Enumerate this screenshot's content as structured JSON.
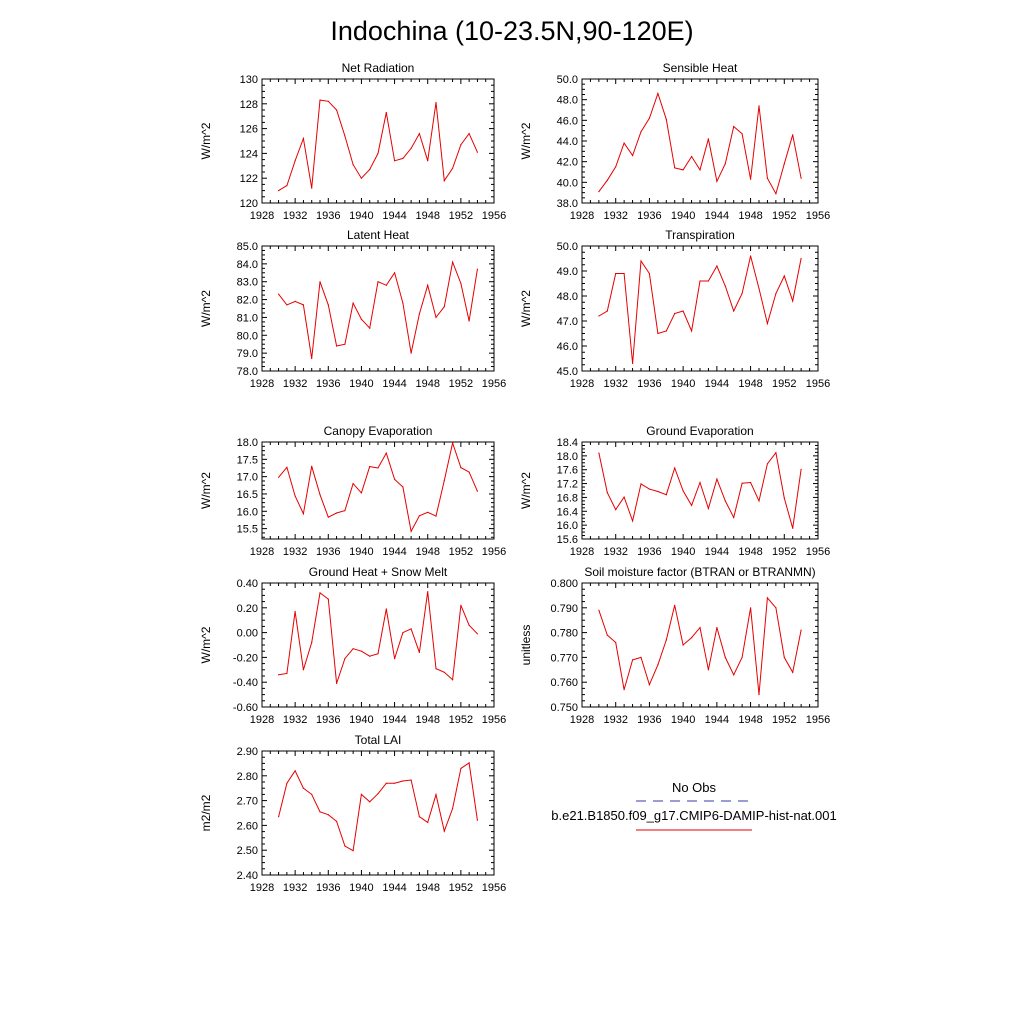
{
  "figure": {
    "title": "Indochina (10-23.5N,90-120E)"
  },
  "legend": {
    "obs_label": "No Obs",
    "model_label": "b.e21.B1850.f09_g17.CMIP6-DAMIP-hist-nat.001",
    "obs_color": "#3a3aa8",
    "model_color": "#e60000"
  },
  "colors": {
    "series": "#e60000",
    "axes": "#000000"
  },
  "chart_data": [
    {
      "type": "line",
      "title": "Net Radiation",
      "ylabel": "W/m^2",
      "xlim": [
        1928,
        1956
      ],
      "ylim": [
        120,
        130
      ],
      "xticks": [
        "1928",
        "1932",
        "1936",
        "1940",
        "1944",
        "1948",
        "1952",
        "1956"
      ],
      "yticks": [
        "120",
        "122",
        "124",
        "126",
        "128",
        "130"
      ],
      "x": [
        1930,
        1931,
        1932,
        1933,
        1934,
        1935,
        1936,
        1937,
        1938,
        1939,
        1940,
        1941,
        1942,
        1943,
        1944,
        1945,
        1946,
        1947,
        1948,
        1949,
        1950,
        1951,
        1952,
        1953,
        1954
      ],
      "series": [
        {
          "values": [
            121.0,
            121.4,
            123.4,
            125.2,
            121.2,
            128.3,
            128.2,
            127.5,
            125.4,
            123.1,
            122.0,
            122.7,
            124.0,
            127.3,
            123.4,
            123.6,
            124.4,
            125.6,
            123.4,
            128.1,
            121.8,
            122.8,
            124.7,
            125.6,
            124.1
          ]
        }
      ]
    },
    {
      "type": "line",
      "title": "Sensible Heat",
      "ylabel": "W/m^2",
      "xlim": [
        1928,
        1956
      ],
      "ylim": [
        38.0,
        50.0
      ],
      "xticks": [
        "1928",
        "1932",
        "1936",
        "1940",
        "1944",
        "1948",
        "1952",
        "1956"
      ],
      "yticks": [
        "38.0",
        "40.0",
        "42.0",
        "44.0",
        "46.0",
        "48.0",
        "50.0"
      ],
      "x": [
        1930,
        1931,
        1932,
        1933,
        1934,
        1935,
        1936,
        1937,
        1938,
        1939,
        1940,
        1941,
        1942,
        1943,
        1944,
        1945,
        1946,
        1947,
        1948,
        1949,
        1950,
        1951,
        1952,
        1953,
        1954
      ],
      "series": [
        {
          "values": [
            39.1,
            40.2,
            41.5,
            43.8,
            42.6,
            44.9,
            46.2,
            48.6,
            46.1,
            41.4,
            41.2,
            42.5,
            41.2,
            44.2,
            40.1,
            41.8,
            45.4,
            44.7,
            40.3,
            47.4,
            40.4,
            38.9,
            41.8,
            44.6,
            40.4
          ]
        }
      ]
    },
    {
      "type": "line",
      "title": "Latent Heat",
      "ylabel": "W/m^2",
      "xlim": [
        1928,
        1956
      ],
      "ylim": [
        78.0,
        85.0
      ],
      "xticks": [
        "1928",
        "1932",
        "1936",
        "1940",
        "1944",
        "1948",
        "1952",
        "1956"
      ],
      "yticks": [
        "78.0",
        "79.0",
        "80.0",
        "81.0",
        "82.0",
        "83.0",
        "84.0",
        "85.0"
      ],
      "x": [
        1930,
        1931,
        1932,
        1933,
        1934,
        1935,
        1936,
        1937,
        1938,
        1939,
        1940,
        1941,
        1942,
        1943,
        1944,
        1945,
        1946,
        1947,
        1948,
        1949,
        1950,
        1951,
        1952,
        1953,
        1954
      ],
      "series": [
        {
          "values": [
            82.3,
            81.7,
            81.9,
            81.7,
            78.7,
            83.0,
            81.7,
            79.4,
            79.5,
            81.8,
            80.9,
            80.4,
            83.0,
            82.8,
            83.5,
            81.8,
            79.0,
            81.2,
            82.8,
            81.0,
            81.6,
            84.1,
            82.9,
            80.8,
            83.7
          ]
        }
      ]
    },
    {
      "type": "line",
      "title": "Transpiration",
      "ylabel": "W/m^2",
      "xlim": [
        1928,
        1956
      ],
      "ylim": [
        45.0,
        50.0
      ],
      "xticks": [
        "1928",
        "1932",
        "1936",
        "1940",
        "1944",
        "1948",
        "1952",
        "1956"
      ],
      "yticks": [
        "45.0",
        "46.0",
        "47.0",
        "48.0",
        "49.0",
        "50.0"
      ],
      "x": [
        1930,
        1931,
        1932,
        1933,
        1934,
        1935,
        1936,
        1937,
        1938,
        1939,
        1940,
        1941,
        1942,
        1943,
        1944,
        1945,
        1946,
        1947,
        1948,
        1949,
        1950,
        1951,
        1952,
        1953,
        1954
      ],
      "series": [
        {
          "values": [
            47.2,
            47.4,
            48.9,
            48.9,
            45.3,
            49.4,
            48.9,
            46.5,
            46.6,
            47.3,
            47.4,
            46.6,
            48.6,
            48.6,
            49.2,
            48.4,
            47.4,
            48.1,
            49.6,
            48.3,
            46.9,
            48.1,
            48.8,
            47.8,
            49.5
          ]
        }
      ]
    },
    {
      "type": "line",
      "title": "Canopy Evaporation",
      "ylabel": "W/m^2",
      "xlim": [
        1928,
        1956
      ],
      "ylim": [
        15.2,
        18.0
      ],
      "xticks": [
        "1928",
        "1932",
        "1936",
        "1940",
        "1944",
        "1948",
        "1952",
        "1956"
      ],
      "yticks": [
        "15.5",
        "16.0",
        "16.5",
        "17.0",
        "17.5",
        "18.0"
      ],
      "x": [
        1930,
        1931,
        1932,
        1933,
        1934,
        1935,
        1936,
        1937,
        1938,
        1939,
        1940,
        1941,
        1942,
        1943,
        1944,
        1945,
        1946,
        1947,
        1948,
        1949,
        1950,
        1951,
        1952,
        1953,
        1954
      ],
      "series": [
        {
          "values": [
            16.98,
            17.27,
            16.44,
            15.93,
            17.3,
            16.48,
            15.83,
            15.95,
            16.02,
            16.8,
            16.53,
            17.29,
            17.25,
            17.68,
            16.92,
            16.7,
            15.42,
            15.87,
            15.97,
            15.86,
            16.89,
            17.97,
            17.26,
            17.13,
            16.58
          ]
        }
      ]
    },
    {
      "type": "line",
      "title": "Ground Evaporation",
      "ylabel": "W/m^2",
      "xlim": [
        1928,
        1956
      ],
      "ylim": [
        15.6,
        18.4
      ],
      "xticks": [
        "1928",
        "1932",
        "1936",
        "1940",
        "1944",
        "1948",
        "1952",
        "1956"
      ],
      "yticks": [
        "15.6",
        "16.0",
        "16.4",
        "16.8",
        "17.2",
        "17.6",
        "18.0",
        "18.4"
      ],
      "x": [
        1930,
        1931,
        1932,
        1933,
        1934,
        1935,
        1936,
        1937,
        1938,
        1939,
        1940,
        1941,
        1942,
        1943,
        1944,
        1945,
        1946,
        1947,
        1948,
        1949,
        1950,
        1951,
        1952,
        1953,
        1954
      ],
      "series": [
        {
          "values": [
            18.08,
            16.94,
            16.45,
            16.81,
            16.12,
            17.19,
            17.04,
            16.97,
            16.88,
            17.65,
            16.99,
            16.57,
            17.23,
            16.48,
            17.33,
            16.7,
            16.22,
            17.21,
            17.23,
            16.7,
            17.77,
            18.09,
            16.78,
            15.91,
            17.61
          ]
        }
      ]
    },
    {
      "type": "line",
      "title": "Ground Heat + Snow Melt",
      "ylabel": "W/m^2",
      "xlim": [
        1928,
        1956
      ],
      "ylim": [
        -0.6,
        0.4
      ],
      "xticks": [
        "1928",
        "1932",
        "1936",
        "1940",
        "1944",
        "1948",
        "1952",
        "1956"
      ],
      "yticks": [
        "-0.60",
        "-0.40",
        "-0.20",
        "0.00",
        "0.20",
        "0.40"
      ],
      "x": [
        1930,
        1931,
        1932,
        1933,
        1934,
        1935,
        1936,
        1937,
        1938,
        1939,
        1940,
        1941,
        1942,
        1943,
        1944,
        1945,
        1946,
        1947,
        1948,
        1949,
        1950,
        1951,
        1952,
        1953,
        1954
      ],
      "series": [
        {
          "values": [
            -0.34,
            -0.33,
            0.17,
            -0.3,
            -0.08,
            0.32,
            0.27,
            -0.41,
            -0.21,
            -0.13,
            -0.15,
            -0.19,
            -0.17,
            0.19,
            -0.21,
            0.0,
            0.03,
            -0.16,
            0.33,
            -0.29,
            -0.32,
            -0.38,
            0.22,
            0.06,
            -0.01
          ]
        }
      ]
    },
    {
      "type": "line",
      "title": "Soil moisture factor (BTRAN or BTRANMN)",
      "ylabel": "unitless",
      "xlim": [
        1928,
        1956
      ],
      "ylim": [
        0.75,
        0.8
      ],
      "xticks": [
        "1928",
        "1932",
        "1936",
        "1940",
        "1944",
        "1948",
        "1952",
        "1956"
      ],
      "yticks": [
        "0.750",
        "0.760",
        "0.770",
        "0.780",
        "0.790",
        "0.800"
      ],
      "x": [
        1930,
        1931,
        1932,
        1933,
        1934,
        1935,
        1936,
        1937,
        1938,
        1939,
        1940,
        1941,
        1942,
        1943,
        1944,
        1945,
        1946,
        1947,
        1948,
        1949,
        1950,
        1951,
        1952,
        1953,
        1954
      ],
      "series": [
        {
          "values": [
            0.789,
            0.779,
            0.776,
            0.757,
            0.769,
            0.77,
            0.759,
            0.767,
            0.777,
            0.791,
            0.775,
            0.778,
            0.782,
            0.765,
            0.782,
            0.77,
            0.763,
            0.77,
            0.79,
            0.755,
            0.794,
            0.79,
            0.77,
            0.764,
            0.781
          ]
        }
      ]
    },
    {
      "type": "line",
      "title": "Total LAI",
      "ylabel": "m2/m2",
      "xlim": [
        1928,
        1956
      ],
      "ylim": [
        2.4,
        2.9
      ],
      "xticks": [
        "1928",
        "1932",
        "1936",
        "1940",
        "1944",
        "1948",
        "1952",
        "1956"
      ],
      "yticks": [
        "2.40",
        "2.50",
        "2.60",
        "2.70",
        "2.80",
        "2.90"
      ],
      "x": [
        1930,
        1931,
        1932,
        1933,
        1934,
        1935,
        1936,
        1937,
        1938,
        1939,
        1940,
        1941,
        1942,
        1943,
        1944,
        1945,
        1946,
        1947,
        1948,
        1949,
        1950,
        1951,
        1952,
        1953,
        1954
      ],
      "series": [
        {
          "values": [
            2.635,
            2.77,
            2.82,
            2.75,
            2.725,
            2.655,
            2.643,
            2.616,
            2.517,
            2.498,
            2.725,
            2.695,
            2.728,
            2.77,
            2.77,
            2.779,
            2.783,
            2.635,
            2.612,
            2.724,
            2.577,
            2.668,
            2.83,
            2.852,
            2.621
          ]
        }
      ]
    }
  ]
}
